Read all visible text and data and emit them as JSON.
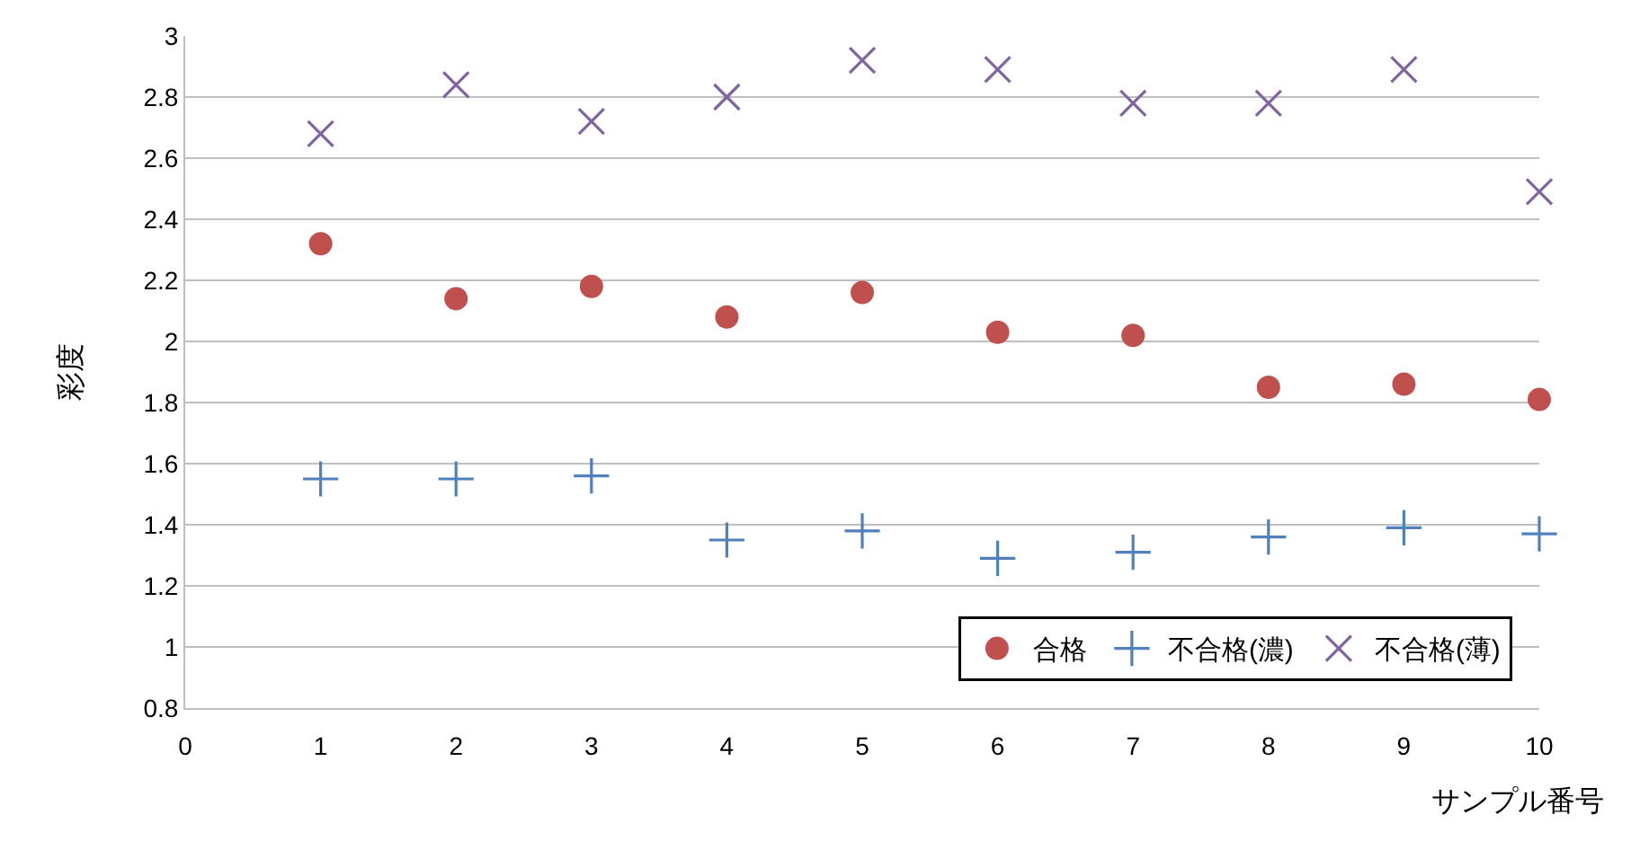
{
  "chart_data": {
    "type": "scatter",
    "xlabel": "サンプル番号",
    "ylabel": "彩度",
    "x": [
      1,
      2,
      3,
      4,
      5,
      6,
      7,
      8,
      9,
      10
    ],
    "series": [
      {
        "name": "合格",
        "color": "#c0504d",
        "marker": "circle",
        "values": [
          2.32,
          2.14,
          2.18,
          2.08,
          2.16,
          2.03,
          2.02,
          1.85,
          1.86,
          1.81
        ]
      },
      {
        "name": "不合格(濃)",
        "color": "#4f81bd",
        "marker": "cross",
        "values": [
          1.55,
          1.55,
          1.56,
          1.35,
          1.38,
          1.29,
          1.31,
          1.36,
          1.39,
          1.37
        ]
      },
      {
        "name": "不合格(薄)",
        "color": "#8064a2",
        "marker": "x",
        "values": [
          2.68,
          2.84,
          2.72,
          2.8,
          2.92,
          2.89,
          2.78,
          2.78,
          2.89,
          2.49
        ]
      }
    ],
    "xlim": [
      0,
      10
    ],
    "xticks": [
      0,
      1,
      2,
      3,
      4,
      5,
      6,
      7,
      8,
      9,
      10
    ],
    "ylim": [
      0.8,
      3
    ],
    "yticks": [
      0.8,
      1,
      1.2,
      1.4,
      1.6,
      1.8,
      2,
      2.2,
      2.4,
      2.6,
      2.8,
      3
    ],
    "grid": "y",
    "legend": "bottom right"
  }
}
